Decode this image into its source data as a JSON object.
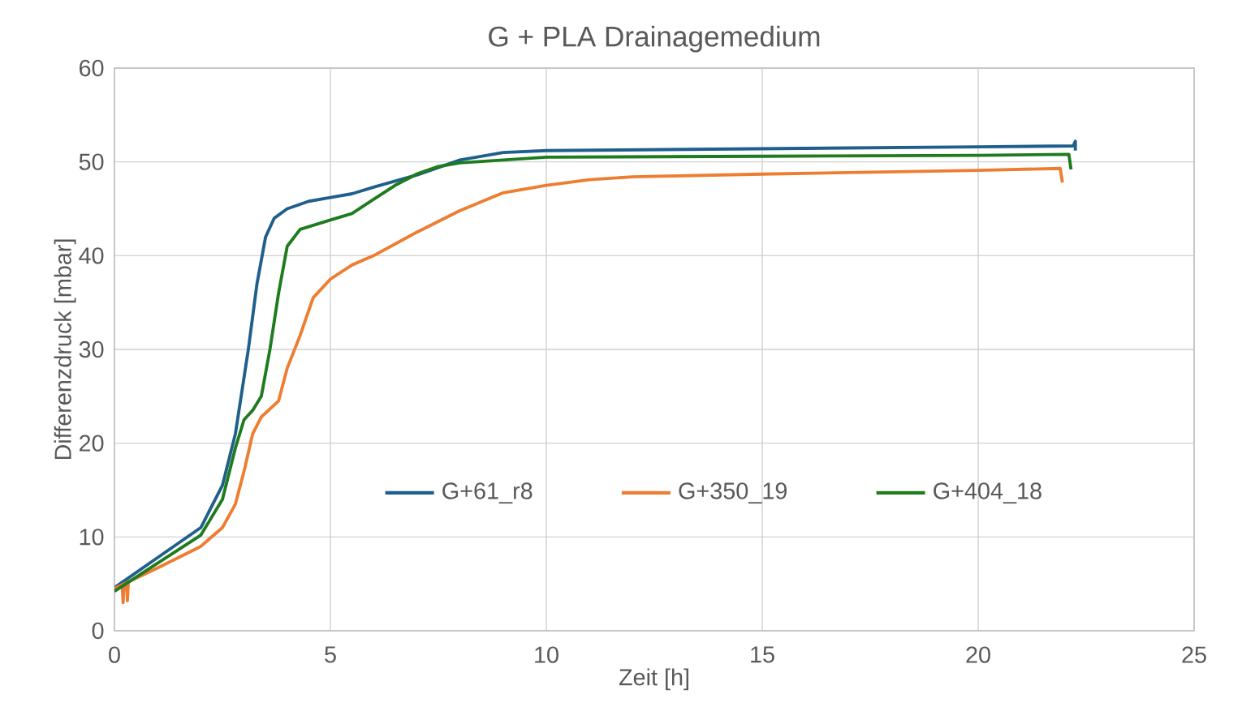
{
  "chart_data": {
    "type": "line",
    "title": "G +  PLA Drainagemedium",
    "xlabel": "Zeit  [h]",
    "ylabel": "Differenzdruck  [mbar]",
    "xlim": [
      0,
      25
    ],
    "xticks": [
      0,
      5,
      10,
      15,
      20,
      25
    ],
    "ylim": [
      0,
      60
    ],
    "yticks": [
      0,
      10,
      20,
      30,
      40,
      50,
      60
    ],
    "grid": true,
    "legend": "bottom",
    "marker": "none",
    "line_style": "solid",
    "series": [
      {
        "name": "G+61_r8",
        "color": "#1f5f8b",
        "x": [
          0,
          1,
          2,
          2.5,
          2.8,
          3.0,
          3.1,
          3.3,
          3.5,
          3.7,
          4.0,
          4.5,
          5,
          5.5,
          6,
          7,
          7.5,
          8,
          9,
          10,
          15,
          20,
          22.2,
          22.25,
          22.25
        ],
        "values": [
          4.6,
          7.8,
          11,
          15.5,
          21,
          27,
          30,
          37,
          42,
          44,
          45,
          45.8,
          46.2,
          46.6,
          47.3,
          48.6,
          49.4,
          50.2,
          51.0,
          51.2,
          51.4,
          51.6,
          51.7,
          52.2,
          51.2
        ]
      },
      {
        "name": "G+350_19",
        "color": "#ed7d31",
        "x": [
          0,
          0.18,
          0.2,
          0.22,
          0.28,
          0.3,
          0.32,
          1,
          2,
          2.5,
          2.8,
          3.0,
          3.2,
          3.4,
          3.8,
          4.0,
          4.3,
          4.6,
          5,
          5.5,
          6,
          7,
          8,
          9,
          10,
          11,
          12,
          15,
          20,
          21.9,
          21.95
        ],
        "values": [
          4.5,
          4.9,
          3.0,
          5.0,
          5.1,
          3.2,
          5.2,
          6.7,
          9.0,
          11,
          13.5,
          17,
          21,
          22.8,
          24.5,
          28,
          31.5,
          35.5,
          37.5,
          39,
          40,
          42.5,
          44.8,
          46.7,
          47.5,
          48.1,
          48.4,
          48.7,
          49.1,
          49.3,
          47.8
        ]
      },
      {
        "name": "G+404_18",
        "color": "#1e7b1e",
        "x": [
          0,
          1,
          2,
          2.5,
          2.8,
          3.0,
          3.2,
          3.4,
          3.6,
          3.8,
          4.0,
          4.3,
          5,
          5.5,
          6,
          6.5,
          7,
          7.5,
          8,
          9,
          10,
          15,
          20,
          22.1,
          22.15
        ],
        "values": [
          4.2,
          7.2,
          10.2,
          14,
          19.5,
          22.5,
          23.5,
          25,
          30,
          36,
          41,
          42.8,
          43.8,
          44.5,
          46,
          47.5,
          48.7,
          49.5,
          49.9,
          50.2,
          50.5,
          50.6,
          50.7,
          50.8,
          49.2
        ]
      }
    ]
  }
}
